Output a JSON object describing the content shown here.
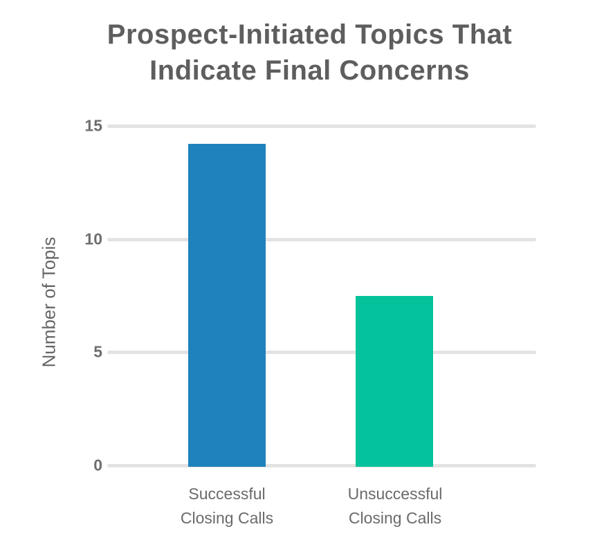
{
  "title": {
    "line1": "Prospect-Initiated Topics That",
    "line2": "Indicate Final Concerns"
  },
  "y_axis": {
    "label": "Number of Topis",
    "ticks": [
      "15",
      "10",
      "5",
      "0"
    ]
  },
  "colors": {
    "bar_successful": "#1f82bc",
    "bar_unsuccessful": "#04c29b",
    "gridline": "#e3e3e3",
    "title_text": "#5e5e5e",
    "tick_text": "#6e6e6e",
    "category_text": "#6a6a6a"
  },
  "chart_data": {
    "type": "bar",
    "title": "Prospect-Initiated Topics That Indicate Final Concerns",
    "categories": [
      "Successful Closing Calls",
      "Unsuccessful Closing Calls"
    ],
    "values": [
      14.2,
      7.5
    ],
    "bar_colors": [
      "#1f82bc",
      "#04c29b"
    ],
    "xlabel": "",
    "ylabel": "Number of Topis",
    "ylim": [
      0,
      15
    ],
    "yticks": [
      0,
      5,
      10,
      15
    ],
    "grid": "horizontal-only",
    "legend": "none"
  }
}
